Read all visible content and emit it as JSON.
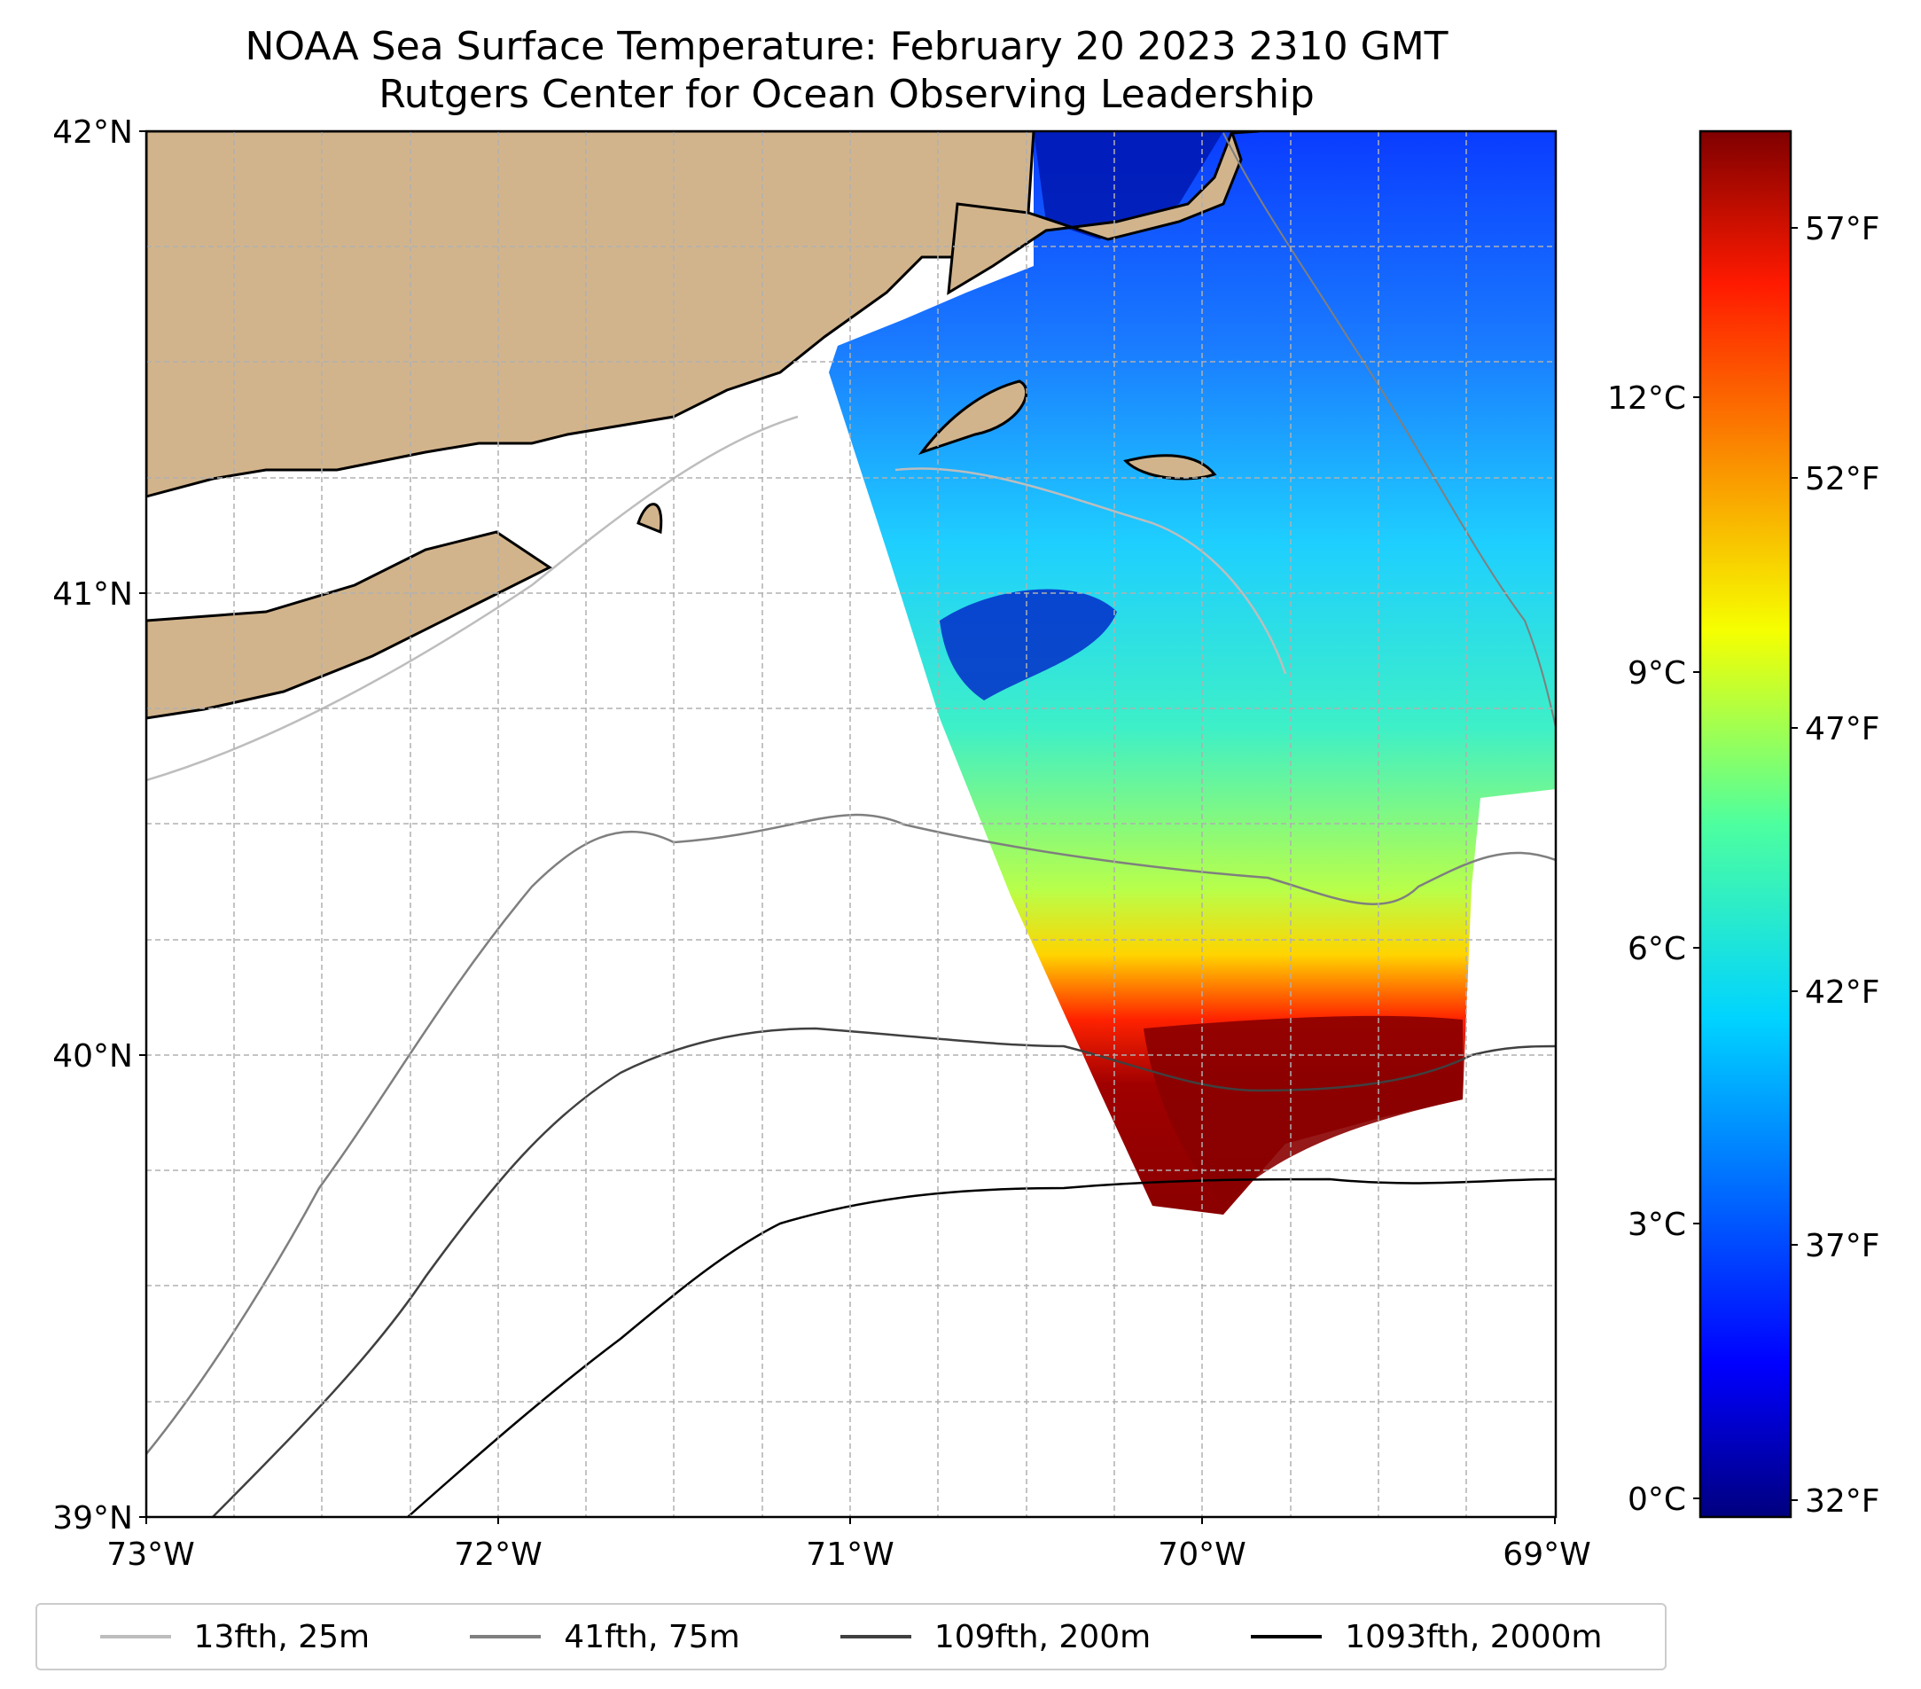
{
  "title": "NOAA Sea Surface Temperature: February 20 2023 2310 GMT",
  "subtitle": "Rutgers Center for Ocean Observing Leadership",
  "map": {
    "lat_labels": [
      "42°N",
      "41°N",
      "40°N",
      "39°N"
    ],
    "lon_labels": [
      "73°W",
      "72°W",
      "71°W",
      "70°W",
      "69°W"
    ],
    "extent": {
      "lon": [
        -73,
        -69
      ],
      "lat": [
        39,
        42
      ]
    },
    "land_color": "#d2b48c",
    "gridlines": true
  },
  "colorbar": {
    "celsius_labels": [
      "12°C",
      "9°C",
      "6°C",
      "3°C",
      "0°C"
    ],
    "fahrenheit_labels": [
      "57°F",
      "52°F",
      "47°F",
      "42°F",
      "37°F",
      "32°F"
    ],
    "celsius_range": [
      -0.2,
      14.9
    ],
    "colormap": "jet"
  },
  "legend": [
    {
      "label": "13fth, 25m",
      "color": "#bdbdbd"
    },
    {
      "label": "41fth, 75m",
      "color": "#7f7f7f"
    },
    {
      "label": "109fth, 200m",
      "color": "#404040"
    },
    {
      "label": "1093fth, 2000m",
      "color": "#000000"
    }
  ]
}
